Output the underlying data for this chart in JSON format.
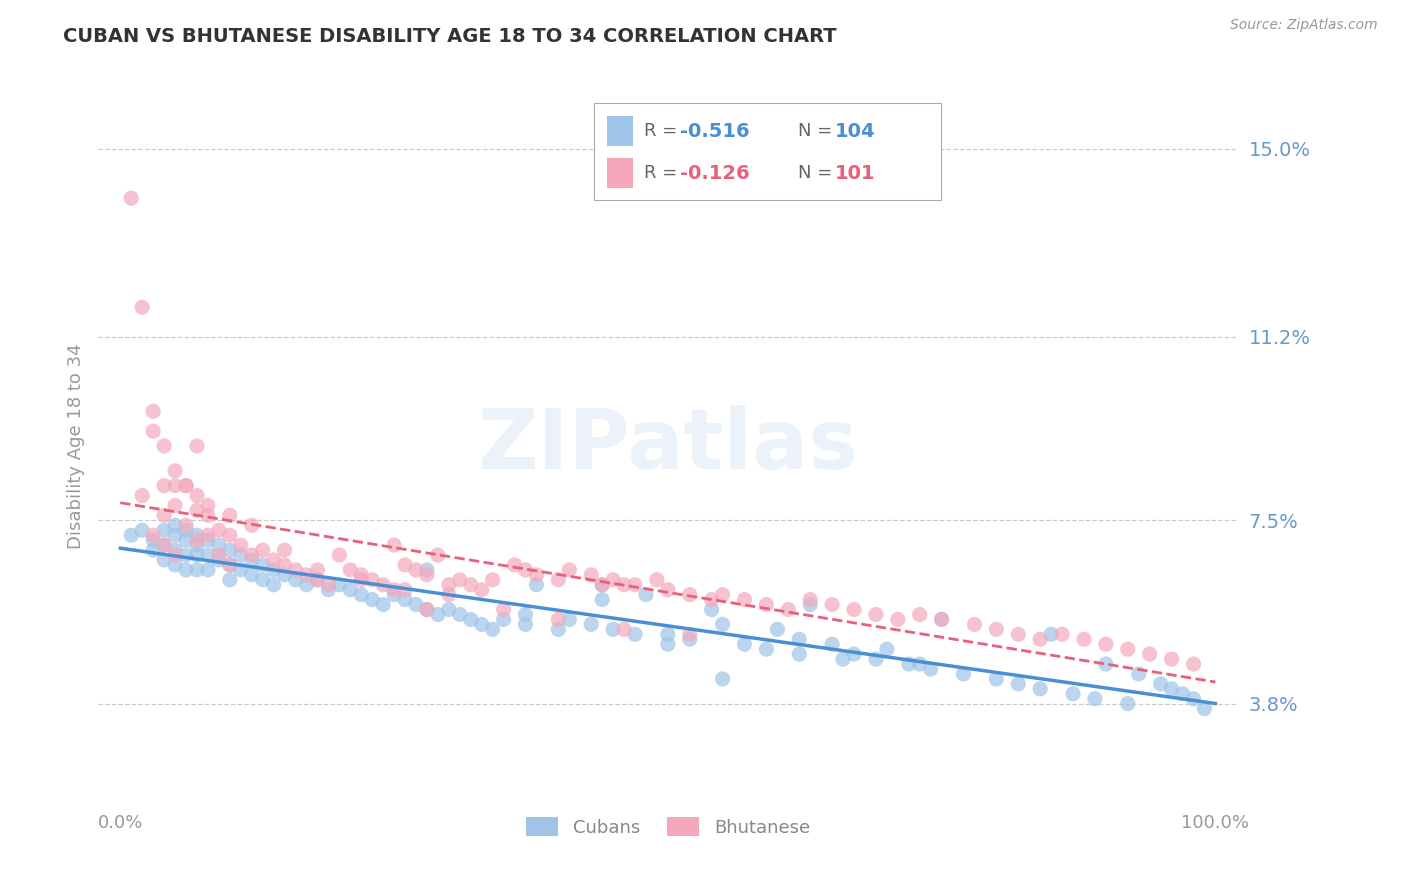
{
  "title": "CUBAN VS BHUTANESE DISABILITY AGE 18 TO 34 CORRELATION CHART",
  "source": "Source: ZipAtlas.com",
  "ylabel": "Disability Age 18 to 34",
  "xlim": [
    -0.02,
    1.02
  ],
  "ylim": [
    0.018,
    0.162
  ],
  "yticks": [
    0.038,
    0.075,
    0.112,
    0.15
  ],
  "ytick_labels": [
    "3.8%",
    "7.5%",
    "11.2%",
    "15.0%"
  ],
  "xtick_labels": [
    "0.0%",
    "100.0%"
  ],
  "xticks": [
    0.0,
    1.0
  ],
  "color_cubans": "#9ec4e8",
  "color_bhutanese": "#f5a8bc",
  "color_line_cubans": "#4a8fd4",
  "color_line_bhutanese": "#e8607a",
  "legend_label_cubans": "Cubans",
  "legend_label_bhutanese": "Bhutanese",
  "R_cubans": -0.516,
  "N_cubans": 104,
  "R_bhutanese": -0.126,
  "N_bhutanese": 101,
  "axis_color": "#6699cc",
  "watermark": "ZIPatlas",
  "cubans_x": [
    0.01,
    0.02,
    0.03,
    0.03,
    0.04,
    0.04,
    0.04,
    0.05,
    0.05,
    0.05,
    0.05,
    0.06,
    0.06,
    0.06,
    0.06,
    0.07,
    0.07,
    0.07,
    0.07,
    0.08,
    0.08,
    0.08,
    0.09,
    0.09,
    0.1,
    0.1,
    0.1,
    0.11,
    0.11,
    0.12,
    0.12,
    0.13,
    0.13,
    0.14,
    0.14,
    0.15,
    0.16,
    0.17,
    0.18,
    0.19,
    0.2,
    0.21,
    0.22,
    0.23,
    0.24,
    0.25,
    0.26,
    0.27,
    0.28,
    0.29,
    0.3,
    0.31,
    0.32,
    0.33,
    0.34,
    0.35,
    0.37,
    0.38,
    0.4,
    0.41,
    0.43,
    0.44,
    0.45,
    0.47,
    0.48,
    0.5,
    0.52,
    0.54,
    0.55,
    0.57,
    0.59,
    0.6,
    0.62,
    0.63,
    0.65,
    0.67,
    0.69,
    0.7,
    0.72,
    0.74,
    0.75,
    0.77,
    0.8,
    0.82,
    0.84,
    0.85,
    0.87,
    0.89,
    0.9,
    0.92,
    0.93,
    0.95,
    0.96,
    0.97,
    0.98,
    0.99,
    0.44,
    0.62,
    0.66,
    0.73,
    0.5,
    0.55,
    0.37,
    0.28
  ],
  "cubans_y": [
    0.072,
    0.073,
    0.071,
    0.069,
    0.073,
    0.07,
    0.067,
    0.074,
    0.072,
    0.069,
    0.066,
    0.073,
    0.071,
    0.068,
    0.065,
    0.072,
    0.07,
    0.068,
    0.065,
    0.071,
    0.068,
    0.065,
    0.07,
    0.067,
    0.069,
    0.066,
    0.063,
    0.068,
    0.065,
    0.067,
    0.064,
    0.066,
    0.063,
    0.065,
    0.062,
    0.064,
    0.063,
    0.062,
    0.063,
    0.061,
    0.062,
    0.061,
    0.06,
    0.059,
    0.058,
    0.06,
    0.059,
    0.058,
    0.057,
    0.056,
    0.057,
    0.056,
    0.055,
    0.054,
    0.053,
    0.055,
    0.054,
    0.062,
    0.053,
    0.055,
    0.054,
    0.059,
    0.053,
    0.052,
    0.06,
    0.052,
    0.051,
    0.057,
    0.054,
    0.05,
    0.049,
    0.053,
    0.051,
    0.058,
    0.05,
    0.048,
    0.047,
    0.049,
    0.046,
    0.045,
    0.055,
    0.044,
    0.043,
    0.042,
    0.041,
    0.052,
    0.04,
    0.039,
    0.046,
    0.038,
    0.044,
    0.042,
    0.041,
    0.04,
    0.039,
    0.037,
    0.062,
    0.048,
    0.047,
    0.046,
    0.05,
    0.043,
    0.056,
    0.065
  ],
  "bhutanese_x": [
    0.01,
    0.02,
    0.02,
    0.03,
    0.03,
    0.04,
    0.04,
    0.04,
    0.05,
    0.05,
    0.05,
    0.06,
    0.06,
    0.07,
    0.07,
    0.07,
    0.08,
    0.08,
    0.09,
    0.09,
    0.1,
    0.1,
    0.11,
    0.12,
    0.13,
    0.14,
    0.15,
    0.16,
    0.17,
    0.18,
    0.19,
    0.2,
    0.21,
    0.22,
    0.23,
    0.24,
    0.25,
    0.25,
    0.26,
    0.27,
    0.28,
    0.29,
    0.3,
    0.31,
    0.32,
    0.33,
    0.34,
    0.36,
    0.37,
    0.38,
    0.4,
    0.41,
    0.43,
    0.44,
    0.45,
    0.46,
    0.47,
    0.49,
    0.5,
    0.52,
    0.54,
    0.55,
    0.57,
    0.59,
    0.61,
    0.63,
    0.65,
    0.67,
    0.69,
    0.71,
    0.73,
    0.75,
    0.78,
    0.8,
    0.82,
    0.84,
    0.86,
    0.88,
    0.9,
    0.92,
    0.94,
    0.96,
    0.98,
    0.03,
    0.04,
    0.05,
    0.06,
    0.07,
    0.08,
    0.1,
    0.12,
    0.15,
    0.18,
    0.22,
    0.26,
    0.3,
    0.35,
    0.4,
    0.46,
    0.52,
    0.28
  ],
  "bhutanese_y": [
    0.14,
    0.118,
    0.08,
    0.093,
    0.072,
    0.082,
    0.076,
    0.07,
    0.078,
    0.082,
    0.068,
    0.082,
    0.074,
    0.077,
    0.071,
    0.09,
    0.076,
    0.072,
    0.073,
    0.068,
    0.072,
    0.066,
    0.07,
    0.068,
    0.069,
    0.067,
    0.066,
    0.065,
    0.064,
    0.063,
    0.062,
    0.068,
    0.065,
    0.064,
    0.063,
    0.062,
    0.061,
    0.07,
    0.066,
    0.065,
    0.064,
    0.068,
    0.062,
    0.063,
    0.062,
    0.061,
    0.063,
    0.066,
    0.065,
    0.064,
    0.063,
    0.065,
    0.064,
    0.062,
    0.063,
    0.062,
    0.062,
    0.063,
    0.061,
    0.06,
    0.059,
    0.06,
    0.059,
    0.058,
    0.057,
    0.059,
    0.058,
    0.057,
    0.056,
    0.055,
    0.056,
    0.055,
    0.054,
    0.053,
    0.052,
    0.051,
    0.052,
    0.051,
    0.05,
    0.049,
    0.048,
    0.047,
    0.046,
    0.097,
    0.09,
    0.085,
    0.082,
    0.08,
    0.078,
    0.076,
    0.074,
    0.069,
    0.065,
    0.063,
    0.061,
    0.06,
    0.057,
    0.055,
    0.053,
    0.052,
    0.057
  ]
}
